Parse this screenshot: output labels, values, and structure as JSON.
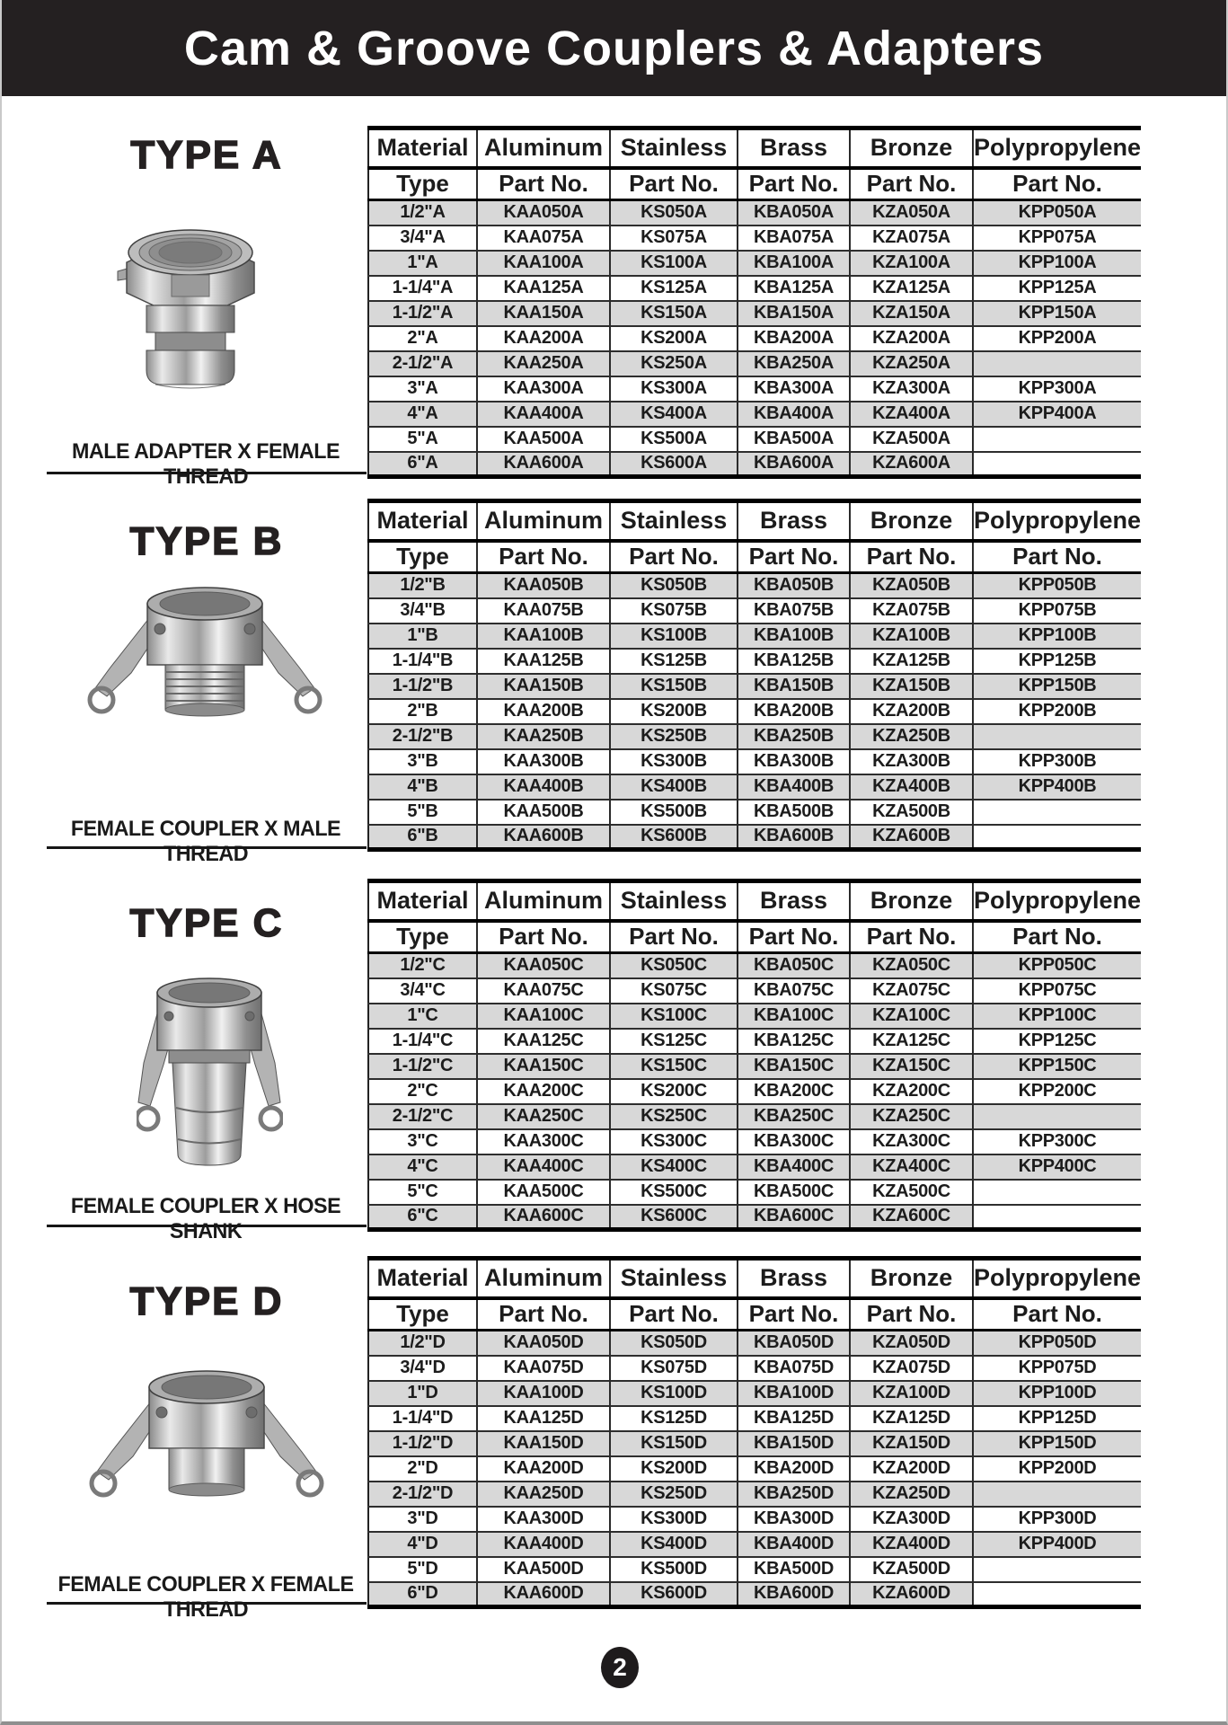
{
  "page": {
    "title": "Cam & Groove Couplers & Adapters",
    "page_number": "2"
  },
  "table": {
    "columns": [
      "Material",
      "Aluminum",
      "Stainless",
      "Brass",
      "Bronze",
      "Polypropylene"
    ],
    "subcolumns": [
      "Type",
      "Part No.",
      "Part No.",
      "Part No.",
      "Part No.",
      "Part No."
    ]
  },
  "sections": [
    {
      "id": "A",
      "heading": "TYPE A",
      "caption": "MALE ADAPTER X FEMALE THREAD",
      "image": "male-adapter-x-female-thread-photo",
      "rows": [
        [
          "1/2\"A",
          "KAA050A",
          "KS050A",
          "KBA050A",
          "KZA050A",
          "KPP050A"
        ],
        [
          "3/4\"A",
          "KAA075A",
          "KS075A",
          "KBA075A",
          "KZA075A",
          "KPP075A"
        ],
        [
          "1\"A",
          "KAA100A",
          "KS100A",
          "KBA100A",
          "KZA100A",
          "KPP100A"
        ],
        [
          "1-1/4\"A",
          "KAA125A",
          "KS125A",
          "KBA125A",
          "KZA125A",
          "KPP125A"
        ],
        [
          "1-1/2\"A",
          "KAA150A",
          "KS150A",
          "KBA150A",
          "KZA150A",
          "KPP150A"
        ],
        [
          "2\"A",
          "KAA200A",
          "KS200A",
          "KBA200A",
          "KZA200A",
          "KPP200A"
        ],
        [
          "2-1/2\"A",
          "KAA250A",
          "KS250A",
          "KBA250A",
          "KZA250A",
          ""
        ],
        [
          "3\"A",
          "KAA300A",
          "KS300A",
          "KBA300A",
          "KZA300A",
          "KPP300A"
        ],
        [
          "4\"A",
          "KAA400A",
          "KS400A",
          "KBA400A",
          "KZA400A",
          "KPP400A"
        ],
        [
          "5\"A",
          "KAA500A",
          "KS500A",
          "KBA500A",
          "KZA500A",
          ""
        ],
        [
          "6\"A",
          "KAA600A",
          "KS600A",
          "KBA600A",
          "KZA600A",
          ""
        ]
      ]
    },
    {
      "id": "B",
      "heading": "TYPE B",
      "caption": "FEMALE COUPLER X MALE THREAD",
      "image": "female-coupler-x-male-thread-photo",
      "rows": [
        [
          "1/2\"B",
          "KAA050B",
          "KS050B",
          "KBA050B",
          "KZA050B",
          "KPP050B"
        ],
        [
          "3/4\"B",
          "KAA075B",
          "KS075B",
          "KBA075B",
          "KZA075B",
          "KPP075B"
        ],
        [
          "1\"B",
          "KAA100B",
          "KS100B",
          "KBA100B",
          "KZA100B",
          "KPP100B"
        ],
        [
          "1-1/4\"B",
          "KAA125B",
          "KS125B",
          "KBA125B",
          "KZA125B",
          "KPP125B"
        ],
        [
          "1-1/2\"B",
          "KAA150B",
          "KS150B",
          "KBA150B",
          "KZA150B",
          "KPP150B"
        ],
        [
          "2\"B",
          "KAA200B",
          "KS200B",
          "KBA200B",
          "KZA200B",
          "KPP200B"
        ],
        [
          "2-1/2\"B",
          "KAA250B",
          "KS250B",
          "KBA250B",
          "KZA250B",
          ""
        ],
        [
          "3\"B",
          "KAA300B",
          "KS300B",
          "KBA300B",
          "KZA300B",
          "KPP300B"
        ],
        [
          "4\"B",
          "KAA400B",
          "KS400B",
          "KBA400B",
          "KZA400B",
          "KPP400B"
        ],
        [
          "5\"B",
          "KAA500B",
          "KS500B",
          "KBA500B",
          "KZA500B",
          ""
        ],
        [
          "6\"B",
          "KAA600B",
          "KS600B",
          "KBA600B",
          "KZA600B",
          ""
        ]
      ]
    },
    {
      "id": "C",
      "heading": "TYPE C",
      "caption": "FEMALE COUPLER X HOSE SHANK",
      "image": "female-coupler-x-hose-shank-photo",
      "rows": [
        [
          "1/2\"C",
          "KAA050C",
          "KS050C",
          "KBA050C",
          "KZA050C",
          "KPP050C"
        ],
        [
          "3/4\"C",
          "KAA075C",
          "KS075C",
          "KBA075C",
          "KZA075C",
          "KPP075C"
        ],
        [
          "1\"C",
          "KAA100C",
          "KS100C",
          "KBA100C",
          "KZA100C",
          "KPP100C"
        ],
        [
          "1-1/4\"C",
          "KAA125C",
          "KS125C",
          "KBA125C",
          "KZA125C",
          "KPP125C"
        ],
        [
          "1-1/2\"C",
          "KAA150C",
          "KS150C",
          "KBA150C",
          "KZA150C",
          "KPP150C"
        ],
        [
          "2\"C",
          "KAA200C",
          "KS200C",
          "KBA200C",
          "KZA200C",
          "KPP200C"
        ],
        [
          "2-1/2\"C",
          "KAA250C",
          "KS250C",
          "KBA250C",
          "KZA250C",
          ""
        ],
        [
          "3\"C",
          "KAA300C",
          "KS300C",
          "KBA300C",
          "KZA300C",
          "KPP300C"
        ],
        [
          "4\"C",
          "KAA400C",
          "KS400C",
          "KBA400C",
          "KZA400C",
          "KPP400C"
        ],
        [
          "5\"C",
          "KAA500C",
          "KS500C",
          "KBA500C",
          "KZA500C",
          ""
        ],
        [
          "6\"C",
          "KAA600C",
          "KS600C",
          "KBA600C",
          "KZA600C",
          ""
        ]
      ]
    },
    {
      "id": "D",
      "heading": "TYPE D",
      "caption": "FEMALE COUPLER X FEMALE THREAD",
      "image": "female-coupler-x-female-thread-photo",
      "rows": [
        [
          "1/2\"D",
          "KAA050D",
          "KS050D",
          "KBA050D",
          "KZA050D",
          "KPP050D"
        ],
        [
          "3/4\"D",
          "KAA075D",
          "KS075D",
          "KBA075D",
          "KZA075D",
          "KPP075D"
        ],
        [
          "1\"D",
          "KAA100D",
          "KS100D",
          "KBA100D",
          "KZA100D",
          "KPP100D"
        ],
        [
          "1-1/4\"D",
          "KAA125D",
          "KS125D",
          "KBA125D",
          "KZA125D",
          "KPP125D"
        ],
        [
          "1-1/2\"D",
          "KAA150D",
          "KS150D",
          "KBA150D",
          "KZA150D",
          "KPP150D"
        ],
        [
          "2\"D",
          "KAA200D",
          "KS200D",
          "KBA200D",
          "KZA200D",
          "KPP200D"
        ],
        [
          "2-1/2\"D",
          "KAA250D",
          "KS250D",
          "KBA250D",
          "KZA250D",
          ""
        ],
        [
          "3\"D",
          "KAA300D",
          "KS300D",
          "KBA300D",
          "KZA300D",
          "KPP300D"
        ],
        [
          "4\"D",
          "KAA400D",
          "KS400D",
          "KBA400D",
          "KZA400D",
          "KPP400D"
        ],
        [
          "5\"D",
          "KAA500D",
          "KS500D",
          "KBA500D",
          "KZA500D",
          ""
        ],
        [
          "6\"D",
          "KAA600D",
          "KS600D",
          "KBA600D",
          "KZA600D",
          ""
        ]
      ]
    }
  ],
  "colors": {
    "header_bar": "#242021",
    "row_shade": "#d8d8d8",
    "border": "#000000"
  }
}
